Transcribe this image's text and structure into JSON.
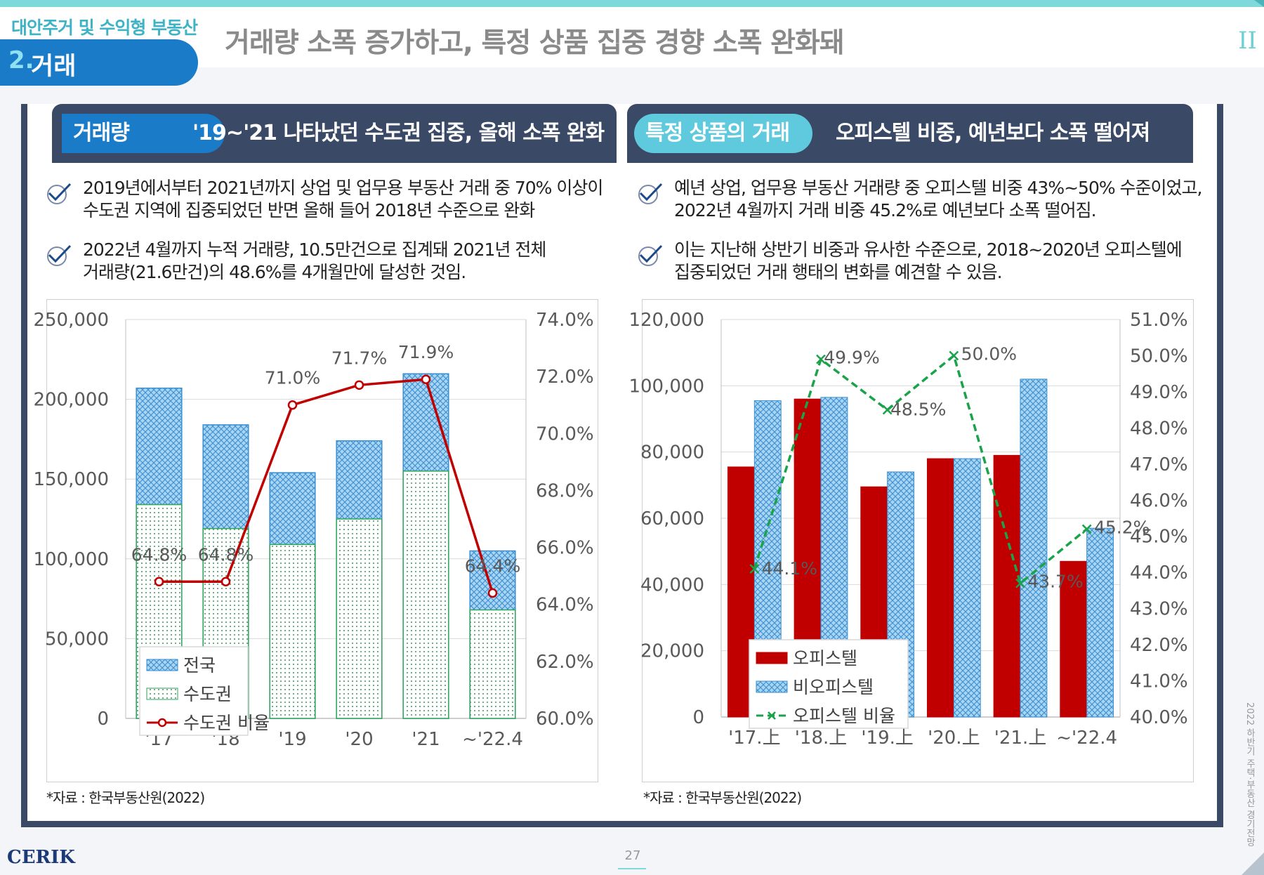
{
  "header": {
    "section_label": "대안주거 및 수익형 부동산",
    "section_number": "2.",
    "section_title": "거래",
    "headline": "거래량 소폭 증가하고, 특정 상품 집중 경향 소폭 완화돼",
    "chapter": "II"
  },
  "left_panel": {
    "tag": "거래량",
    "title": "'19~'21 나타났던 수도권 집중, 올해 소폭 완화",
    "bullets": [
      [
        "2019년에서부터 2021년까지 상업 및 업무용 부동산 거래 중 70% 이상이",
        "수도권 지역에 집중되었던 반면 올해 들어 2018년 수준으로 완화"
      ],
      [
        "2022년 4월까지 누적 거래량, 10.5만건으로 집계돼 2021년 전체",
        "거래량(21.6만건)의 48.6%를 4개월만에 달성한 것임."
      ]
    ],
    "source": "*자료 : 한국부동산원(2022)"
  },
  "right_panel": {
    "tag": "특정 상품의 거래",
    "title": "오피스텔 비중, 예년보다 소폭 떨어져",
    "bullets": [
      [
        "예년 상업, 업무용 부동산 거래량 중 오피스텔 비중 43%~50% 수준이었고,",
        "2022년 4월까지 거래 비중 45.2%로 예년보다 소폭 떨어짐."
      ],
      [
        "이는 지난해 상반기 비중과 유사한 수준으로,  2018~2020년 오피스텔에",
        "집중되었던 거래 행태의 변화를 예견할 수 있음."
      ]
    ],
    "source": "*자료 : 한국부동산원(2022)"
  },
  "chart_data": [
    {
      "type": "bar",
      "categories": [
        "'17",
        "'18",
        "'19",
        "'20",
        "'21",
        "~'22.4"
      ],
      "series": [
        {
          "name": "전국",
          "kind": "bar-overlay",
          "color": "#4da6e0",
          "values": [
            207000,
            184000,
            154000,
            174000,
            216000,
            105000
          ]
        },
        {
          "name": "수도권",
          "kind": "bar-overlay",
          "color": "#58b878",
          "values": [
            134000,
            119000,
            109000,
            125000,
            155000,
            68000
          ]
        },
        {
          "name": "수도권 비율",
          "kind": "line",
          "axis": "right",
          "color": "#c00000",
          "values": [
            64.8,
            64.8,
            71.0,
            71.7,
            71.9,
            64.4
          ]
        }
      ],
      "data_labels": [
        "64.8%",
        "64.8%",
        "71.0%",
        "71.7%",
        "71.9%",
        "64.4%"
      ],
      "ylim": [
        0,
        250000
      ],
      "yticks": [
        "0",
        "50,000",
        "100,000",
        "150,000",
        "200,000",
        "250,000"
      ],
      "y2lim": [
        60.0,
        74.0
      ],
      "y2ticks": [
        "60.0%",
        "62.0%",
        "64.0%",
        "66.0%",
        "68.0%",
        "70.0%",
        "72.0%",
        "74.0%"
      ],
      "grid": true,
      "legend_position": "bottom-left"
    },
    {
      "type": "bar",
      "categories": [
        "'17.上",
        "'18.上",
        "'19.上",
        "'20.上",
        "'21.上",
        "~'22.4"
      ],
      "series": [
        {
          "name": "오피스텔",
          "kind": "bar",
          "color": "#c00000",
          "values": [
            75500,
            96000,
            69500,
            78000,
            79000,
            47000
          ]
        },
        {
          "name": "비오피스텔",
          "kind": "bar",
          "color": "#4da6e0",
          "values": [
            95500,
            96500,
            74000,
            78000,
            102000,
            57000
          ]
        },
        {
          "name": "오피스텔 비율",
          "kind": "line",
          "axis": "right",
          "color": "#1aa34a",
          "values": [
            44.1,
            49.9,
            48.5,
            50.0,
            43.7,
            45.2
          ]
        }
      ],
      "data_labels": [
        "44.1%",
        "49.9%",
        "48.5%",
        "50.0%",
        "43.7%",
        "45.2%"
      ],
      "ylim": [
        0,
        120000
      ],
      "yticks": [
        "0",
        "20,000",
        "40,000",
        "60,000",
        "80,000",
        "100,000",
        "120,000"
      ],
      "y2lim": [
        40.0,
        51.0
      ],
      "y2ticks": [
        "40.0%",
        "41.0%",
        "42.0%",
        "43.0%",
        "44.0%",
        "45.0%",
        "46.0%",
        "47.0%",
        "48.0%",
        "49.0%",
        "50.0%",
        "51.0%"
      ],
      "grid": true,
      "legend_position": "bottom-left"
    }
  ],
  "footer": {
    "logo": "CERIK",
    "page": "27",
    "side_text": "2022 하반기 주택·부동산 경기전망"
  }
}
